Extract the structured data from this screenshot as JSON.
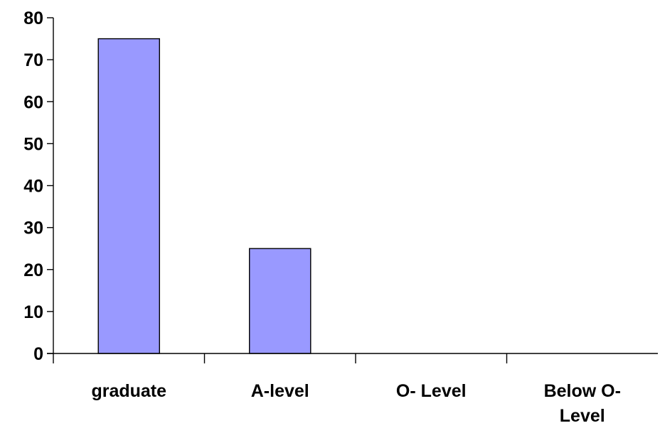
{
  "chart_data": {
    "type": "bar",
    "categories": [
      "graduate",
      "A-level",
      "O- Level",
      "Below O-Level"
    ],
    "category_label_lines": [
      [
        "graduate"
      ],
      [
        "A-level"
      ],
      [
        "O- Level"
      ],
      [
        "Below O-",
        "Level"
      ]
    ],
    "values": [
      75,
      25,
      0,
      0
    ],
    "title": "",
    "xlabel": "",
    "ylabel": "",
    "ylim": [
      0,
      80
    ],
    "yticks": [
      0,
      10,
      20,
      30,
      40,
      50,
      60,
      70,
      80
    ],
    "grid": false,
    "legend": "none",
    "bar_color": "#9999ff",
    "bar_edge_color": "#000000"
  }
}
